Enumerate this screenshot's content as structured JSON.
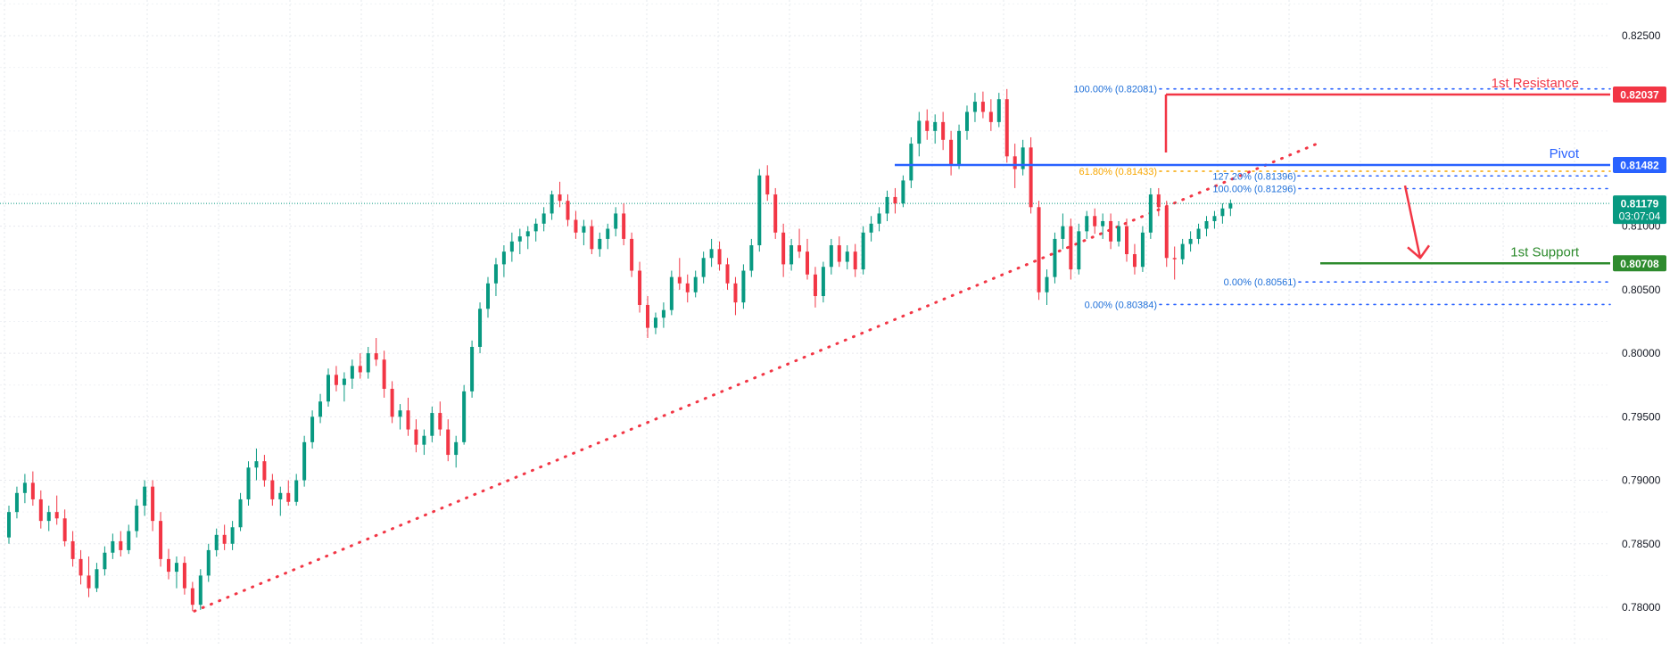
{
  "chart_data": {
    "type": "candlestick",
    "y_axis": {
      "ticks": [
        "0.82500",
        "0.81000",
        "0.80500",
        "0.80000",
        "0.79500",
        "0.79000",
        "0.78500",
        "0.78000"
      ],
      "tick_values": [
        0.825,
        0.81,
        0.805,
        0.8,
        0.795,
        0.79,
        0.785,
        0.78
      ],
      "range": [
        0.7775,
        0.8275
      ],
      "position": "right"
    },
    "grid": true,
    "colors": {
      "up": "#089981",
      "down": "#f23645",
      "resistance": "#f23645",
      "pivot": "#2962ff",
      "support": "#2e8b2e",
      "fib": "#2962ff",
      "fib_label": "#1e6fd9",
      "fib_golden": "#f7a600",
      "trendline": "#f23645",
      "current_price": "#089981",
      "grid": "#e6e8ee"
    },
    "levels": [
      {
        "name": "1st Resistance",
        "value": 0.82037,
        "label": "0.82037",
        "color": "#f23645"
      },
      {
        "name": "Pivot",
        "value": 0.81482,
        "label": "0.81482",
        "color": "#2962ff"
      },
      {
        "name": "1st Support",
        "value": 0.80708,
        "label": "0.80708",
        "color": "#2e8b2e"
      }
    ],
    "current_price": {
      "value": 0.81179,
      "label": "0.81179",
      "countdown": "03:07:04"
    },
    "fib_retracements": [
      {
        "label": "100.00% (0.82081)",
        "value": 0.82081
      },
      {
        "label": "61.80% (0.81433)",
        "value": 0.81433
      },
      {
        "label": "0.00% (0.80384)",
        "value": 0.80384
      },
      {
        "label": "127.20% (0.81396)",
        "value": 0.81396
      },
      {
        "label": "100.00% (0.81296)",
        "value": 0.81296
      },
      {
        "label": "0.00% (0.80561)",
        "value": 0.80561
      }
    ],
    "trendline": {
      "from": 0.7797,
      "to": 0.8166
    },
    "projection_arrow": {
      "from": 0.8132,
      "to": 0.8075
    },
    "ohlc": [
      [
        0.7855,
        0.788,
        0.785,
        0.7875
      ],
      [
        0.7875,
        0.7895,
        0.787,
        0.789
      ],
      [
        0.789,
        0.7905,
        0.7882,
        0.7898
      ],
      [
        0.7898,
        0.7907,
        0.788,
        0.7885
      ],
      [
        0.7885,
        0.7892,
        0.7862,
        0.7868
      ],
      [
        0.7868,
        0.788,
        0.786,
        0.7875
      ],
      [
        0.7875,
        0.7888,
        0.7865,
        0.787
      ],
      [
        0.787,
        0.7877,
        0.7848,
        0.7852
      ],
      [
        0.7852,
        0.786,
        0.7832,
        0.7838
      ],
      [
        0.7838,
        0.7845,
        0.7818,
        0.7825
      ],
      [
        0.7825,
        0.784,
        0.7808,
        0.7815
      ],
      [
        0.7815,
        0.7835,
        0.7812,
        0.783
      ],
      [
        0.783,
        0.7848,
        0.7825,
        0.7843
      ],
      [
        0.7843,
        0.7858,
        0.7838,
        0.7852
      ],
      [
        0.7852,
        0.786,
        0.784,
        0.7845
      ],
      [
        0.7845,
        0.7865,
        0.7842,
        0.786
      ],
      [
        0.786,
        0.7885,
        0.7855,
        0.788
      ],
      [
        0.788,
        0.79,
        0.7872,
        0.7895
      ],
      [
        0.7895,
        0.79,
        0.786,
        0.7868
      ],
      [
        0.7868,
        0.7875,
        0.7832,
        0.7838
      ],
      [
        0.7838,
        0.7846,
        0.7822,
        0.7828
      ],
      [
        0.7828,
        0.784,
        0.7815,
        0.7835
      ],
      [
        0.7835,
        0.784,
        0.781,
        0.7815
      ],
      [
        0.7815,
        0.782,
        0.7797,
        0.7802
      ],
      [
        0.7802,
        0.783,
        0.7798,
        0.7825
      ],
      [
        0.7825,
        0.785,
        0.782,
        0.7845
      ],
      [
        0.7845,
        0.7862,
        0.784,
        0.7857
      ],
      [
        0.7857,
        0.7865,
        0.7845,
        0.785
      ],
      [
        0.785,
        0.7868,
        0.7845,
        0.7863
      ],
      [
        0.7863,
        0.789,
        0.786,
        0.7885
      ],
      [
        0.7885,
        0.7915,
        0.788,
        0.791
      ],
      [
        0.791,
        0.7925,
        0.79,
        0.7915
      ],
      [
        0.7915,
        0.792,
        0.7895,
        0.79
      ],
      [
        0.79,
        0.7905,
        0.788,
        0.7885
      ],
      [
        0.7885,
        0.7895,
        0.7872,
        0.789
      ],
      [
        0.789,
        0.79,
        0.788,
        0.7883
      ],
      [
        0.7883,
        0.7905,
        0.788,
        0.79
      ],
      [
        0.79,
        0.7935,
        0.7895,
        0.793
      ],
      [
        0.793,
        0.7955,
        0.7925,
        0.795
      ],
      [
        0.795,
        0.7968,
        0.7945,
        0.7962
      ],
      [
        0.7962,
        0.7988,
        0.7958,
        0.7983
      ],
      [
        0.7983,
        0.799,
        0.797,
        0.7975
      ],
      [
        0.7975,
        0.7985,
        0.7962,
        0.798
      ],
      [
        0.798,
        0.7995,
        0.7972,
        0.799
      ],
      [
        0.799,
        0.8,
        0.798,
        0.7985
      ],
      [
        0.7985,
        0.8005,
        0.798,
        0.8
      ],
      [
        0.8,
        0.8012,
        0.799,
        0.7995
      ],
      [
        0.7995,
        0.8002,
        0.7965,
        0.7972
      ],
      [
        0.7972,
        0.7978,
        0.7945,
        0.795
      ],
      [
        0.795,
        0.796,
        0.794,
        0.7955
      ],
      [
        0.7955,
        0.7965,
        0.7935,
        0.794
      ],
      [
        0.794,
        0.7948,
        0.7922,
        0.7928
      ],
      [
        0.7928,
        0.794,
        0.792,
        0.7935
      ],
      [
        0.7935,
        0.7958,
        0.793,
        0.7953
      ],
      [
        0.7953,
        0.7962,
        0.7935,
        0.794
      ],
      [
        0.794,
        0.7948,
        0.7915,
        0.792
      ],
      [
        0.792,
        0.7935,
        0.791,
        0.793
      ],
      [
        0.793,
        0.7975,
        0.7928,
        0.797
      ],
      [
        0.797,
        0.801,
        0.7965,
        0.8005
      ],
      [
        0.8005,
        0.804,
        0.8,
        0.8035
      ],
      [
        0.8035,
        0.806,
        0.8028,
        0.8055
      ],
      [
        0.8055,
        0.8075,
        0.8045,
        0.807
      ],
      [
        0.807,
        0.8085,
        0.806,
        0.808
      ],
      [
        0.808,
        0.8095,
        0.8072,
        0.8088
      ],
      [
        0.8088,
        0.8098,
        0.8078,
        0.8092
      ],
      [
        0.8092,
        0.81,
        0.8082,
        0.8096
      ],
      [
        0.8096,
        0.8106,
        0.8088,
        0.8102
      ],
      [
        0.8102,
        0.8115,
        0.8096,
        0.811
      ],
      [
        0.811,
        0.8128,
        0.8105,
        0.8125
      ],
      [
        0.8125,
        0.8135,
        0.8115,
        0.812
      ],
      [
        0.812,
        0.8125,
        0.81,
        0.8105
      ],
      [
        0.8105,
        0.8112,
        0.809,
        0.8095
      ],
      [
        0.8095,
        0.8105,
        0.8085,
        0.81
      ],
      [
        0.81,
        0.8105,
        0.8078,
        0.8082
      ],
      [
        0.8082,
        0.8095,
        0.8076,
        0.809
      ],
      [
        0.809,
        0.8102,
        0.8082,
        0.8098
      ],
      [
        0.8098,
        0.8115,
        0.8092,
        0.811
      ],
      [
        0.811,
        0.8118,
        0.8085,
        0.809
      ],
      [
        0.809,
        0.8095,
        0.806,
        0.8065
      ],
      [
        0.8065,
        0.8072,
        0.8032,
        0.8038
      ],
      [
        0.8038,
        0.8045,
        0.8012,
        0.802
      ],
      [
        0.802,
        0.8032,
        0.8015,
        0.8028
      ],
      [
        0.8028,
        0.804,
        0.802,
        0.8034
      ],
      [
        0.8034,
        0.8065,
        0.803,
        0.806
      ],
      [
        0.806,
        0.8075,
        0.805,
        0.8055
      ],
      [
        0.8055,
        0.8062,
        0.804,
        0.8048
      ],
      [
        0.8048,
        0.8065,
        0.8044,
        0.806
      ],
      [
        0.806,
        0.808,
        0.8055,
        0.8075
      ],
      [
        0.8075,
        0.809,
        0.8068,
        0.8082
      ],
      [
        0.8082,
        0.8088,
        0.8065,
        0.807
      ],
      [
        0.807,
        0.8075,
        0.805,
        0.8055
      ],
      [
        0.8055,
        0.806,
        0.803,
        0.804
      ],
      [
        0.804,
        0.807,
        0.8035,
        0.8065
      ],
      [
        0.8065,
        0.809,
        0.806,
        0.8085
      ],
      [
        0.8085,
        0.8145,
        0.808,
        0.814
      ],
      [
        0.814,
        0.8148,
        0.812,
        0.8125
      ],
      [
        0.8125,
        0.813,
        0.809,
        0.8095
      ],
      [
        0.8095,
        0.8102,
        0.806,
        0.807
      ],
      [
        0.807,
        0.809,
        0.8065,
        0.8085
      ],
      [
        0.8085,
        0.8098,
        0.8075,
        0.808
      ],
      [
        0.808,
        0.809,
        0.8058,
        0.8062
      ],
      [
        0.8062,
        0.8068,
        0.8036,
        0.8045
      ],
      [
        0.8045,
        0.8072,
        0.804,
        0.8068
      ],
      [
        0.8068,
        0.809,
        0.8062,
        0.8085
      ],
      [
        0.8085,
        0.8092,
        0.8068,
        0.8072
      ],
      [
        0.8072,
        0.8085,
        0.8066,
        0.808
      ],
      [
        0.808,
        0.8086,
        0.806,
        0.8066
      ],
      [
        0.8066,
        0.81,
        0.8062,
        0.8095
      ],
      [
        0.8095,
        0.8108,
        0.8088,
        0.8102
      ],
      [
        0.8102,
        0.8115,
        0.8096,
        0.811
      ],
      [
        0.811,
        0.8128,
        0.8104,
        0.8123
      ],
      [
        0.8123,
        0.813,
        0.811,
        0.8118
      ],
      [
        0.8118,
        0.814,
        0.8115,
        0.8136
      ],
      [
        0.8136,
        0.817,
        0.813,
        0.8165
      ],
      [
        0.8165,
        0.819,
        0.8155,
        0.8183
      ],
      [
        0.8183,
        0.8192,
        0.8168,
        0.8175
      ],
      [
        0.8175,
        0.8188,
        0.8165,
        0.8182
      ],
      [
        0.8182,
        0.819,
        0.816,
        0.8168
      ],
      [
        0.8168,
        0.8175,
        0.814,
        0.8148
      ],
      [
        0.8148,
        0.818,
        0.8145,
        0.8175
      ],
      [
        0.8175,
        0.8195,
        0.8168,
        0.819
      ],
      [
        0.819,
        0.8205,
        0.8182,
        0.8198
      ],
      [
        0.8198,
        0.8206,
        0.8185,
        0.819
      ],
      [
        0.819,
        0.82,
        0.8175,
        0.8182
      ],
      [
        0.8182,
        0.8205,
        0.8178,
        0.82
      ],
      [
        0.82,
        0.8208,
        0.815,
        0.8155
      ],
      [
        0.8155,
        0.8165,
        0.813,
        0.8145
      ],
      [
        0.8145,
        0.8168,
        0.814,
        0.8162
      ],
      [
        0.8162,
        0.817,
        0.811,
        0.8115
      ],
      [
        0.8115,
        0.812,
        0.8042,
        0.8048
      ],
      [
        0.8048,
        0.8066,
        0.8038,
        0.806
      ],
      [
        0.806,
        0.8095,
        0.8055,
        0.809
      ],
      [
        0.809,
        0.811,
        0.8082,
        0.81
      ],
      [
        0.81,
        0.8106,
        0.8058,
        0.8066
      ],
      [
        0.8066,
        0.8102,
        0.8062,
        0.8096
      ],
      [
        0.8096,
        0.8112,
        0.809,
        0.8108
      ],
      [
        0.8108,
        0.8114,
        0.8094,
        0.81
      ],
      [
        0.81,
        0.811,
        0.809,
        0.8104
      ],
      [
        0.8104,
        0.811,
        0.8082,
        0.8088
      ],
      [
        0.8088,
        0.8104,
        0.8084,
        0.81
      ],
      [
        0.81,
        0.8106,
        0.8072,
        0.8078
      ],
      [
        0.8078,
        0.8086,
        0.8062,
        0.8068
      ],
      [
        0.8068,
        0.81,
        0.8064,
        0.8095
      ],
      [
        0.8095,
        0.813,
        0.809,
        0.8125
      ],
      [
        0.8125,
        0.813,
        0.8108,
        0.8115
      ],
      [
        0.8115,
        0.812,
        0.8068,
        0.8075
      ],
      [
        0.8075,
        0.8084,
        0.8058,
        0.8074
      ],
      [
        0.8074,
        0.809,
        0.807,
        0.8086
      ],
      [
        0.8086,
        0.8096,
        0.808,
        0.809
      ],
      [
        0.809,
        0.8102,
        0.8086,
        0.8098
      ],
      [
        0.8098,
        0.8108,
        0.8092,
        0.8104
      ],
      [
        0.8104,
        0.8112,
        0.8098,
        0.8108
      ],
      [
        0.8108,
        0.8118,
        0.8102,
        0.8114
      ],
      [
        0.8114,
        0.8121,
        0.8108,
        0.8118
      ]
    ]
  }
}
